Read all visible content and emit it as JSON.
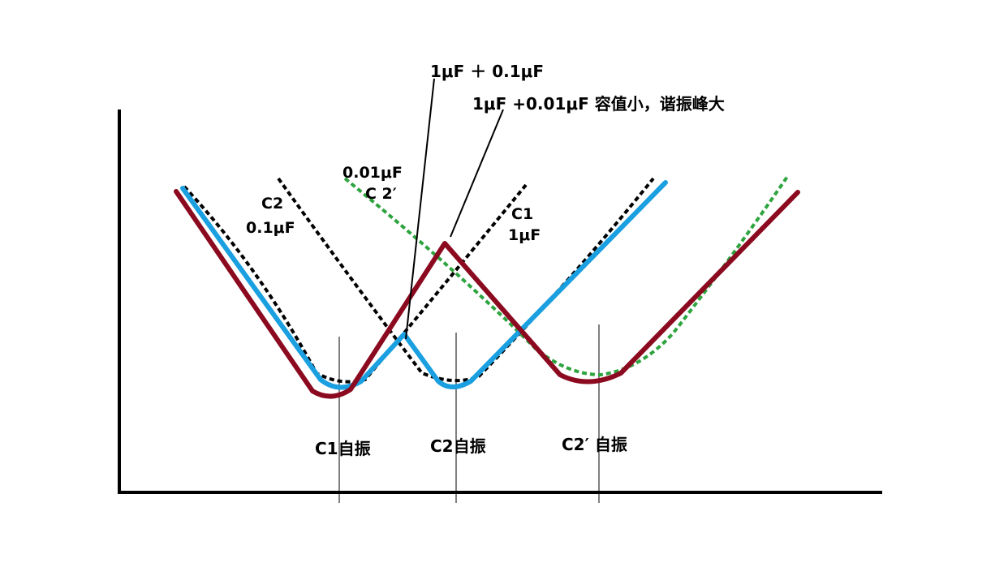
{
  "labels": {
    "combo_01": "1μF ＋ 0.1μF",
    "combo_001_note": "1μF +0.01μF   容值小，谐振峰大",
    "c2prime_value": "0.01μF",
    "c2prime_name": "C 2′",
    "c2_name": "C2",
    "c2_value": "0.1μF",
    "c1_name": "C1",
    "c1_value": "1μF",
    "c1_self_res": "C1自振",
    "c2_self_res": "C2自振",
    "c2prime_self_res": "C2′ 自振"
  },
  "colors": {
    "axis": "#000000",
    "c1_curve": "#000000",
    "c2_curve": "#000000",
    "c2prime_curve": "#2ea43f",
    "combo_01_curve": "#1a9fe0",
    "combo_001_curve": "#8b0a1f",
    "guide_line": "#000000"
  }
}
